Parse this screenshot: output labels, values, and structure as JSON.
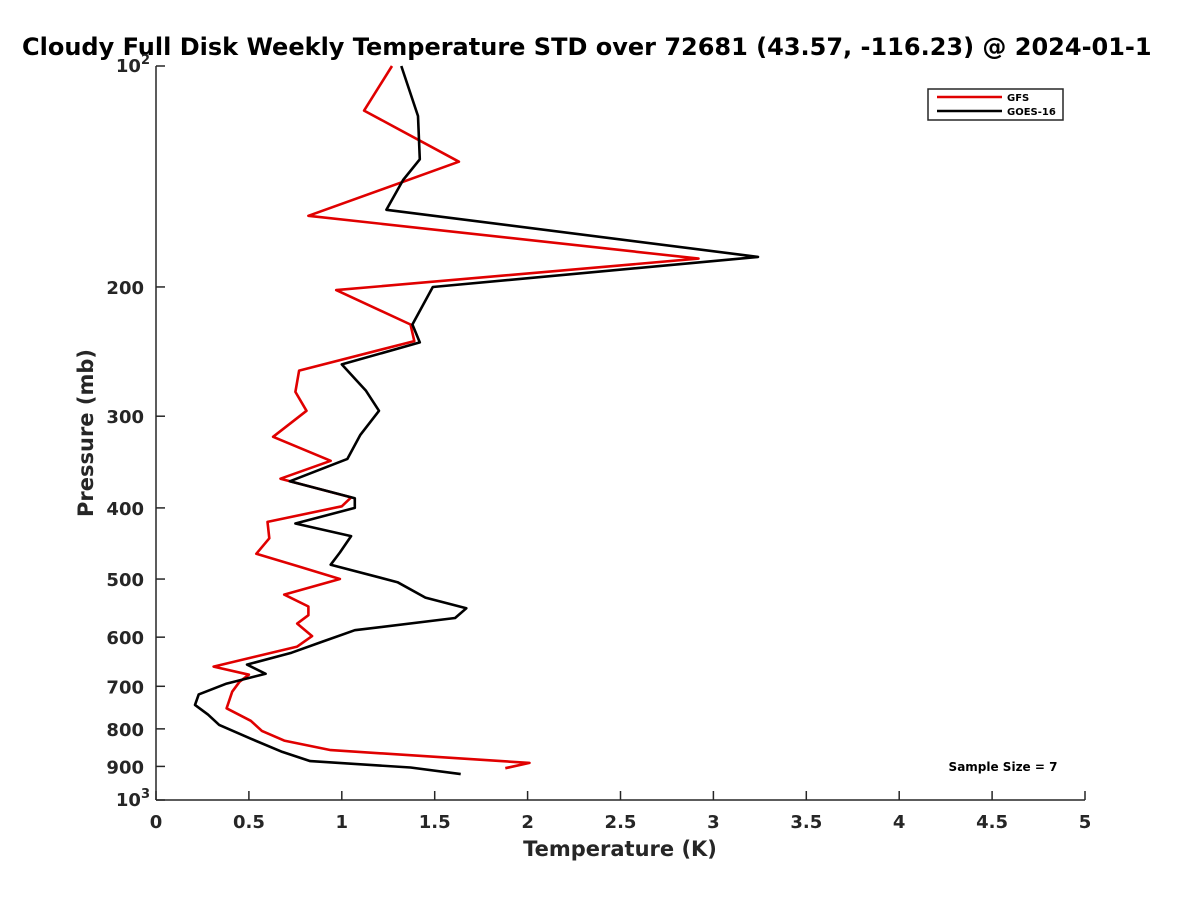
{
  "chart_data": {
    "type": "line",
    "title": "Cloudy Full Disk Weekly Temperature STD over 72681 (43.57, -116.23) @ 2024-01-1",
    "xlabel": "Temperature (K)",
    "ylabel": "Pressure (mb)",
    "xlim": [
      0,
      5
    ],
    "ylim": [
      1000,
      100
    ],
    "y_scale": "log",
    "y_reversed": true,
    "grid": false,
    "legend_position": "top-right",
    "x_ticks": [
      {
        "value": 0,
        "label": "0"
      },
      {
        "value": 0.5,
        "label": "0.5"
      },
      {
        "value": 1,
        "label": "1"
      },
      {
        "value": 1.5,
        "label": "1.5"
      },
      {
        "value": 2,
        "label": "2"
      },
      {
        "value": 2.5,
        "label": "2.5"
      },
      {
        "value": 3,
        "label": "3"
      },
      {
        "value": 3.5,
        "label": "3.5"
      },
      {
        "value": 4,
        "label": "4"
      },
      {
        "value": 4.5,
        "label": "4.5"
      },
      {
        "value": 5,
        "label": "5"
      }
    ],
    "y_ticks": [
      {
        "value": 100,
        "base": "10",
        "exp": "2"
      },
      {
        "value": 200,
        "label": "200"
      },
      {
        "value": 300,
        "label": "300"
      },
      {
        "value": 400,
        "label": "400"
      },
      {
        "value": 500,
        "label": "500"
      },
      {
        "value": 600,
        "label": "600"
      },
      {
        "value": 700,
        "label": "700"
      },
      {
        "value": 800,
        "label": "800"
      },
      {
        "value": 900,
        "label": "900"
      },
      {
        "value": 1000,
        "base": "10",
        "exp": "3"
      }
    ],
    "annotation": "Sample Size = 7",
    "series": [
      {
        "name": "GFS",
        "color": "#e00000",
        "points": [
          [
            1.27,
            100
          ],
          [
            1.12,
            115
          ],
          [
            1.63,
            135
          ],
          [
            0.82,
            160
          ],
          [
            2.92,
            183
          ],
          [
            0.97,
            202
          ],
          [
            1.37,
            225
          ],
          [
            1.39,
            237
          ],
          [
            0.77,
            260
          ],
          [
            0.75,
            278
          ],
          [
            0.81,
            295
          ],
          [
            0.63,
            320
          ],
          [
            0.94,
            345
          ],
          [
            0.67,
            365
          ],
          [
            1.05,
            387
          ],
          [
            1.0,
            398
          ],
          [
            0.6,
            418
          ],
          [
            0.61,
            440
          ],
          [
            0.54,
            462
          ],
          [
            0.76,
            480
          ],
          [
            0.99,
            500
          ],
          [
            0.69,
            525
          ],
          [
            0.82,
            545
          ],
          [
            0.82,
            560
          ],
          [
            0.76,
            575
          ],
          [
            0.84,
            598
          ],
          [
            0.76,
            618
          ],
          [
            0.31,
            658
          ],
          [
            0.5,
            675
          ],
          [
            0.45,
            690
          ],
          [
            0.41,
            712
          ],
          [
            0.38,
            750
          ],
          [
            0.51,
            780
          ],
          [
            0.57,
            805
          ],
          [
            0.69,
            830
          ],
          [
            0.94,
            855
          ],
          [
            2.01,
            890
          ],
          [
            1.88,
            905
          ]
        ]
      },
      {
        "name": "GOES-16",
        "color": "#000000",
        "points": [
          [
            1.32,
            100
          ],
          [
            1.41,
            117
          ],
          [
            1.42,
            134
          ],
          [
            1.33,
            143
          ],
          [
            1.24,
            157
          ],
          [
            3.24,
            182
          ],
          [
            1.49,
            200
          ],
          [
            1.38,
            225
          ],
          [
            1.42,
            238
          ],
          [
            1.0,
            255
          ],
          [
            1.13,
            277
          ],
          [
            1.2,
            295
          ],
          [
            1.1,
            318
          ],
          [
            1.03,
            343
          ],
          [
            0.72,
            368
          ],
          [
            1.07,
            388
          ],
          [
            1.07,
            400
          ],
          [
            0.75,
            420
          ],
          [
            1.05,
            437
          ],
          [
            0.99,
            460
          ],
          [
            0.94,
            478
          ],
          [
            1.3,
            505
          ],
          [
            1.45,
            530
          ],
          [
            1.67,
            548
          ],
          [
            1.61,
            565
          ],
          [
            1.07,
            587
          ],
          [
            0.9,
            608
          ],
          [
            0.73,
            630
          ],
          [
            0.49,
            654
          ],
          [
            0.59,
            673
          ],
          [
            0.38,
            694
          ],
          [
            0.23,
            718
          ],
          [
            0.21,
            742
          ],
          [
            0.28,
            765
          ],
          [
            0.34,
            790
          ],
          [
            0.51,
            825
          ],
          [
            0.68,
            860
          ],
          [
            0.83,
            885
          ],
          [
            1.37,
            903
          ],
          [
            1.64,
            922
          ]
        ]
      }
    ]
  }
}
